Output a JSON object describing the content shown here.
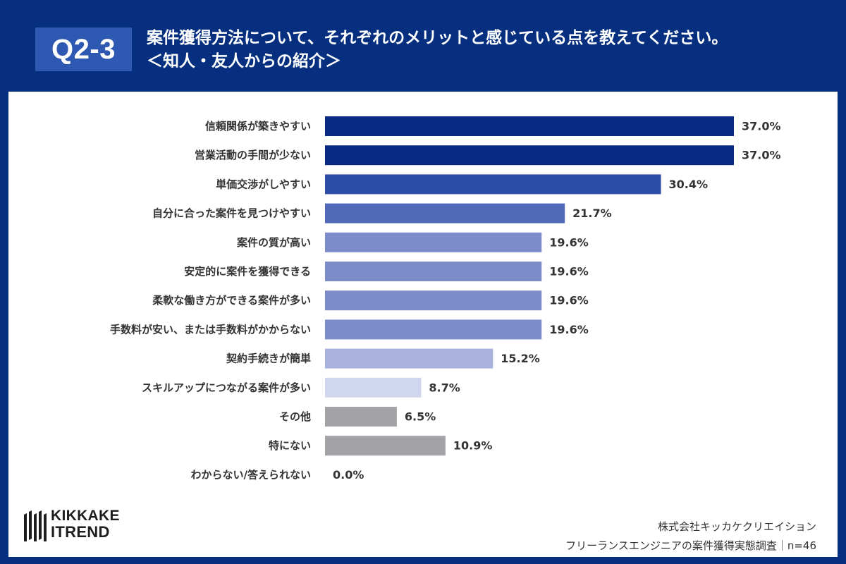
{
  "header": {
    "badge": "Q2-3",
    "title_line1": "案件獲得方法について、それぞれのメリットと感じている点を教えてください。",
    "title_line2": "＜知人・友人からの紹介＞"
  },
  "colors": {
    "header_bg": "#06307f",
    "badge_bg": "#2d59b2",
    "card_bg": "#ffffff",
    "label_text": "#333333"
  },
  "chart_data": {
    "type": "bar",
    "orientation": "horizontal",
    "categories": [
      "信頼関係が築きやすい",
      "営業活動の手間が少ない",
      "単価交渉がしやすい",
      "自分に合った案件を見つけやすい",
      "案件の質が高い",
      "安定的に案件を獲得できる",
      "柔軟な働き方ができる案件が多い",
      "手数料が安い、または手数料がかからない",
      "契約手続きが簡単",
      "スキルアップにつながる案件が多い",
      "その他",
      "特にない",
      "わからない/答えられない"
    ],
    "values": [
      37.0,
      37.0,
      30.4,
      21.7,
      19.6,
      19.6,
      19.6,
      19.6,
      15.2,
      8.7,
      6.5,
      10.9,
      0.0
    ],
    "value_labels": [
      "37.0%",
      "37.0%",
      "30.4%",
      "21.7%",
      "19.6%",
      "19.6%",
      "19.6%",
      "19.6%",
      "15.2%",
      "8.7%",
      "6.5%",
      "10.9%",
      "0.0%"
    ],
    "bar_colors": [
      "#0a2b83",
      "#0a2b83",
      "#2d4ea8",
      "#5169b8",
      "#7b8cc8",
      "#7b8cc8",
      "#7b8cc8",
      "#7b8cc8",
      "#a8b2dc",
      "#d0d6ee",
      "#a3a3a7",
      "#a3a3a7",
      "#a3a3a7"
    ],
    "xlim": [
      0,
      37.0
    ],
    "unit": "%"
  },
  "footer": {
    "logo_line1": "KIKKAKE",
    "logo_line2": "ITREND",
    "source_line1": "株式会社キッカケクリエイション",
    "source_line2": "フリーランスエンジニアの案件獲得実態調査｜n=46"
  }
}
